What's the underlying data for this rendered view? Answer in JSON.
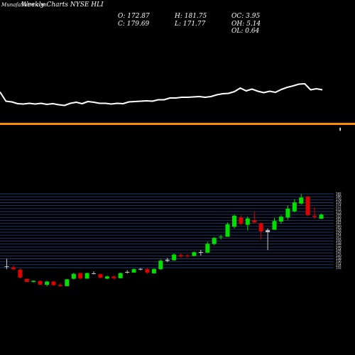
{
  "header": {
    "brand": "MunafaSutra.com",
    "title": "Weekly Charts NYSE HLI",
    "stats": {
      "open": "O: 172.87",
      "close": "C: 179.69",
      "high": "H: 181.75",
      "low": "L: 171.77",
      "oc": "OC: 3.95",
      "oh": "OH: 5.14",
      "ol": "OL: 0.64"
    }
  },
  "chart_data": {
    "type": "candlestick",
    "title": "Weekly Charts NYSE HLI",
    "price_axis_ticks": [
      "182",
      "180",
      "178",
      "176",
      "174",
      "172",
      "170",
      "168",
      "166",
      "164",
      "162",
      "160",
      "158",
      "156",
      "154",
      "152",
      "150",
      "148",
      "146",
      "144",
      "142",
      "140",
      "138",
      "136",
      "134",
      "132"
    ],
    "candles": [
      {
        "o": 132.9,
        "h": 138.0,
        "l": 131.0,
        "c": 132.9,
        "color": "gray"
      },
      {
        "o": 132.2,
        "h": 133.5,
        "l": 130.2,
        "c": 131.0,
        "color": "red"
      },
      {
        "o": 130.6,
        "h": 131.5,
        "l": 124.8,
        "c": 125.3,
        "color": "red"
      },
      {
        "o": 124.4,
        "h": 124.6,
        "l": 122.2,
        "c": 122.4,
        "color": "red"
      },
      {
        "o": 122.4,
        "h": 123.3,
        "l": 122.0,
        "c": 123.1,
        "color": "green"
      },
      {
        "o": 122.9,
        "h": 123.4,
        "l": 120.4,
        "c": 120.5,
        "color": "red"
      },
      {
        "o": 120.5,
        "h": 123.2,
        "l": 119.4,
        "c": 122.6,
        "color": "green"
      },
      {
        "o": 122.6,
        "h": 123.1,
        "l": 119.8,
        "c": 120.2,
        "color": "red"
      },
      {
        "o": 120.3,
        "h": 121.5,
        "l": 119.1,
        "c": 119.5,
        "color": "red"
      },
      {
        "o": 119.5,
        "h": 124.4,
        "l": 119.4,
        "c": 124.1,
        "color": "green"
      },
      {
        "o": 124.5,
        "h": 128.5,
        "l": 124.0,
        "c": 127.8,
        "color": "green"
      },
      {
        "o": 128.3,
        "h": 128.5,
        "l": 124.0,
        "c": 124.7,
        "color": "red"
      },
      {
        "o": 124.6,
        "h": 128.6,
        "l": 124.5,
        "c": 128.3,
        "color": "green"
      },
      {
        "o": 128.2,
        "h": 129.5,
        "l": 127.5,
        "c": 128.0,
        "color": "gray"
      },
      {
        "o": 127.6,
        "h": 127.9,
        "l": 124.9,
        "c": 125.2,
        "color": "red"
      },
      {
        "o": 124.6,
        "h": 126.5,
        "l": 124.2,
        "c": 126.1,
        "color": "green"
      },
      {
        "o": 126.0,
        "h": 126.6,
        "l": 124.0,
        "c": 124.9,
        "color": "red"
      },
      {
        "o": 124.9,
        "h": 128.7,
        "l": 124.7,
        "c": 128.3,
        "color": "green"
      },
      {
        "o": 128.6,
        "h": 130.2,
        "l": 128.1,
        "c": 129.1,
        "color": "gray"
      },
      {
        "o": 128.7,
        "h": 131.4,
        "l": 128.6,
        "c": 131.0,
        "color": "green"
      },
      {
        "o": 130.8,
        "h": 131.7,
        "l": 130.1,
        "c": 131.2,
        "color": "gray"
      },
      {
        "o": 131.0,
        "h": 131.6,
        "l": 127.9,
        "c": 128.7,
        "color": "red"
      },
      {
        "o": 128.2,
        "h": 131.5,
        "l": 128.0,
        "c": 131.1,
        "color": "green"
      },
      {
        "o": 131.0,
        "h": 137.6,
        "l": 130.5,
        "c": 136.7,
        "color": "green"
      },
      {
        "o": 136.7,
        "h": 138.6,
        "l": 135.8,
        "c": 137.4,
        "color": "gray"
      },
      {
        "o": 137.0,
        "h": 141.6,
        "l": 136.7,
        "c": 140.9,
        "color": "green"
      },
      {
        "o": 140.5,
        "h": 141.6,
        "l": 138.8,
        "c": 139.7,
        "color": "red"
      },
      {
        "o": 139.8,
        "h": 141.3,
        "l": 138.5,
        "c": 140.3,
        "color": "red"
      },
      {
        "o": 140.0,
        "h": 142.9,
        "l": 139.7,
        "c": 142.5,
        "color": "green"
      },
      {
        "o": 142.3,
        "h": 144.0,
        "l": 140.2,
        "c": 142.6,
        "color": "gray"
      },
      {
        "o": 142.2,
        "h": 149.6,
        "l": 141.9,
        "c": 148.2,
        "color": "green"
      },
      {
        "o": 148.1,
        "h": 152.8,
        "l": 147.2,
        "c": 152.1,
        "color": "green"
      },
      {
        "o": 152.5,
        "h": 154.2,
        "l": 151.0,
        "c": 153.0,
        "color": "green"
      },
      {
        "o": 152.9,
        "h": 162.6,
        "l": 152.9,
        "c": 161.4,
        "color": "green"
      },
      {
        "o": 167.2,
        "h": 168.0,
        "l": 158.6,
        "c": 159.7,
        "color": "green"
      },
      {
        "o": 165.9,
        "h": 167.5,
        "l": 160.8,
        "c": 161.8,
        "color": "red"
      },
      {
        "o": 161.0,
        "h": 166.6,
        "l": 157.2,
        "c": 165.3,
        "color": "green"
      },
      {
        "o": 164.0,
        "h": 170.0,
        "l": 161.8,
        "c": 162.7,
        "color": "red"
      },
      {
        "o": 162.0,
        "h": 162.6,
        "l": 151.1,
        "c": 156.5,
        "color": "red"
      },
      {
        "o": 157.4,
        "h": 158.6,
        "l": 143.9,
        "c": 156.1,
        "color": "gray"
      },
      {
        "o": 157.7,
        "h": 165.6,
        "l": 157.6,
        "c": 163.6,
        "color": "green"
      },
      {
        "o": 163.2,
        "h": 167.5,
        "l": 161.8,
        "c": 166.5,
        "color": "green"
      },
      {
        "o": 166.0,
        "h": 174.0,
        "l": 164.6,
        "c": 172.0,
        "color": "green"
      },
      {
        "o": 170.2,
        "h": 178.4,
        "l": 169.5,
        "c": 176.2,
        "color": "green"
      },
      {
        "o": 175.4,
        "h": 182.0,
        "l": 174.7,
        "c": 179.5,
        "color": "green"
      },
      {
        "o": 180.0,
        "h": 180.5,
        "l": 166.8,
        "c": 167.6,
        "color": "red"
      },
      {
        "o": 167.2,
        "h": 172.9,
        "l": 165.0,
        "c": 166.5,
        "color": "red"
      },
      {
        "o": 165.1,
        "h": 168.6,
        "l": 165.0,
        "c": 167.9,
        "color": "green"
      }
    ],
    "indicator_line": [
      0.05,
      0.31,
      0.33,
      0.38,
      0.39,
      0.37,
      0.39,
      0.37,
      0.4,
      0.38,
      0.41,
      0.43,
      0.37,
      0.34,
      0.38,
      0.32,
      0.34,
      0.37,
      0.37,
      0.39,
      0.37,
      0.38,
      0.33,
      0.32,
      0.31,
      0.3,
      0.31,
      0.27,
      0.27,
      0.22,
      0.22,
      0.2,
      0.2,
      0.19,
      0.18,
      0.2,
      0.18,
      0.13,
      0.1,
      0.09,
      0.04,
      -0.06,
      0.02,
      -0.03,
      0.03,
      0.07,
      0.03,
      0.06,
      -0.02,
      -0.08,
      -0.12,
      -0.17,
      -0.18,
      -0.01,
      -0.04,
      -0.01
    ],
    "reference_line": {
      "color": "#ff8c00"
    },
    "colors": {
      "up": "#00e000",
      "down": "#e00000",
      "neutral": "#c8c8c8",
      "grid": "#203a74",
      "background": "#000000",
      "line": "#ffffff"
    }
  }
}
